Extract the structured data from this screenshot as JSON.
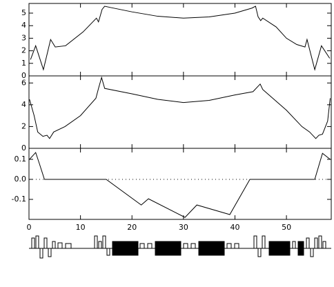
{
  "chart_data": [
    {
      "type": "line",
      "x": [
        0.3,
        1.3,
        2.8,
        4.2,
        5.1,
        7.1,
        10.5,
        13.1,
        13.5,
        14.2,
        14.7,
        15.8,
        20,
        25,
        30,
        35,
        40,
        43.3,
        44,
        44.5,
        45,
        45.4,
        48,
        50,
        52,
        53.6,
        54,
        55.5,
        56.8,
        58.4
      ],
      "series": [
        {
          "color": "#000000",
          "values": [
            1.3,
            2.4,
            0.5,
            2.9,
            2.3,
            2.4,
            3.5,
            4.6,
            4.3,
            5.3,
            5.55,
            5.45,
            5.1,
            4.75,
            4.6,
            4.7,
            5.0,
            5.4,
            5.55,
            4.7,
            4.4,
            4.6,
            3.9,
            3.0,
            2.5,
            2.3,
            2.9,
            0.5,
            2.4,
            1.4
          ]
        }
      ],
      "xlim": [
        0,
        58.7
      ],
      "xticks": [
        0,
        10,
        20,
        30,
        40,
        50
      ],
      "ylim": [
        0,
        5.77
      ],
      "yticks": [
        0,
        1,
        2,
        3,
        4,
        5
      ]
    },
    {
      "type": "line",
      "x": [
        0.1,
        1,
        1.7,
        2.7,
        3.5,
        4,
        4.8,
        7,
        10,
        13,
        13.5,
        14.1,
        14.7,
        20,
        25,
        30,
        35,
        40,
        43.5,
        44.9,
        45.4,
        50,
        53,
        54.5,
        55.7,
        56.3,
        57,
        58,
        58.5
      ],
      "series": [
        {
          "color": "#000000",
          "values": [
            4.5,
            3.0,
            1.5,
            1.1,
            1.2,
            0.9,
            1.5,
            2.0,
            3.0,
            4.6,
            5.5,
            6.5,
            5.5,
            5.0,
            4.5,
            4.2,
            4.4,
            4.9,
            5.2,
            5.9,
            5.4,
            3.5,
            2.0,
            1.5,
            0.9,
            1.2,
            1.3,
            2.5,
            4.6
          ]
        }
      ],
      "xlim": [
        0,
        58.7
      ],
      "xticks": [
        0,
        10,
        20,
        30,
        40,
        50
      ],
      "ylim": [
        0,
        6.65
      ],
      "yticks": [
        0,
        2,
        4,
        6
      ]
    },
    {
      "type": "line",
      "x": [
        0.1,
        1.3,
        2,
        3,
        15,
        21.8,
        23.2,
        30.3,
        32.6,
        39,
        42.9,
        55.5,
        57,
        58.5
      ],
      "series": [
        {
          "color": "#000000",
          "values": [
            0.1,
            0.134,
            0.08,
            0.0,
            0.0,
            -0.128,
            -0.097,
            -0.19,
            -0.128,
            -0.176,
            0.0,
            0.0,
            0.13,
            0.1
          ]
        }
      ],
      "xlim": [
        0,
        58.7
      ],
      "xticks": [
        0,
        10,
        20,
        30,
        40,
        50
      ],
      "ylim": [
        -0.2,
        0.155
      ],
      "yticks": [
        -0.1,
        {
          "value": 0,
          "label": "0.0"
        },
        0.1
      ],
      "zero_line": true
    }
  ]
}
